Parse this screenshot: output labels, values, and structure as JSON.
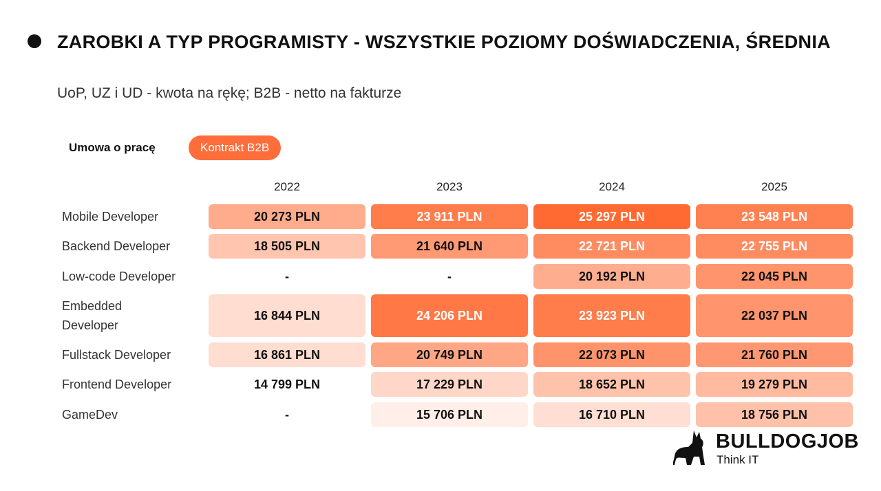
{
  "header": {
    "title": "ZAROBKI A TYP PROGRAMISTY - WSZYSTKIE POZIOMY DOŚWIADCZENIA, ŚREDNIA",
    "subtitle": "UoP, UZ i UD - kwota na rękę; B2B - netto na fakturze"
  },
  "tabs": [
    {
      "label": "Umowa o pracę",
      "active": false
    },
    {
      "label": "Kontrakt B2B",
      "active": true
    }
  ],
  "colors": {
    "accent": "#ff6d3a",
    "high": "#ff6a33",
    "low": "#ffffff"
  },
  "chart_data": {
    "type": "heatmap",
    "columns": [
      "2022",
      "2023",
      "2024",
      "2025"
    ],
    "rows": [
      "Mobile Developer",
      "Backend Developer",
      "Low-code Developer",
      "Embedded Developer",
      "Fullstack Developer",
      "Frontend Developer",
      "GameDev"
    ],
    "unit": "PLN",
    "values": [
      [
        20273,
        23911,
        25297,
        23548
      ],
      [
        18505,
        21640,
        22721,
        22755
      ],
      [
        null,
        null,
        20192,
        22045
      ],
      [
        16844,
        24206,
        23923,
        22037
      ],
      [
        16861,
        20749,
        22073,
        21760
      ],
      [
        14799,
        17229,
        18652,
        19279
      ],
      [
        null,
        15706,
        16710,
        18756
      ]
    ],
    "labels": [
      [
        "20 273 PLN",
        "23 911 PLN",
        "25 297 PLN",
        "23 548 PLN"
      ],
      [
        "18 505 PLN",
        "21 640 PLN",
        "22 721 PLN",
        "22 755 PLN"
      ],
      [
        "-",
        "-",
        "20 192 PLN",
        "22 045 PLN"
      ],
      [
        "16 844 PLN",
        "24 206 PLN",
        "23 923 PLN",
        "22 037 PLN"
      ],
      [
        "16 861 PLN",
        "20 749 PLN",
        "22 073 PLN",
        "21 760 PLN"
      ],
      [
        "14 799 PLN",
        "17 229 PLN",
        "18 652 PLN",
        "19 279 PLN"
      ],
      [
        "-",
        "15 706 PLN",
        "16 710 PLN",
        "18 756 PLN"
      ]
    ]
  },
  "logo": {
    "name": "BULLDOGJOB",
    "tagline": "Think IT"
  }
}
